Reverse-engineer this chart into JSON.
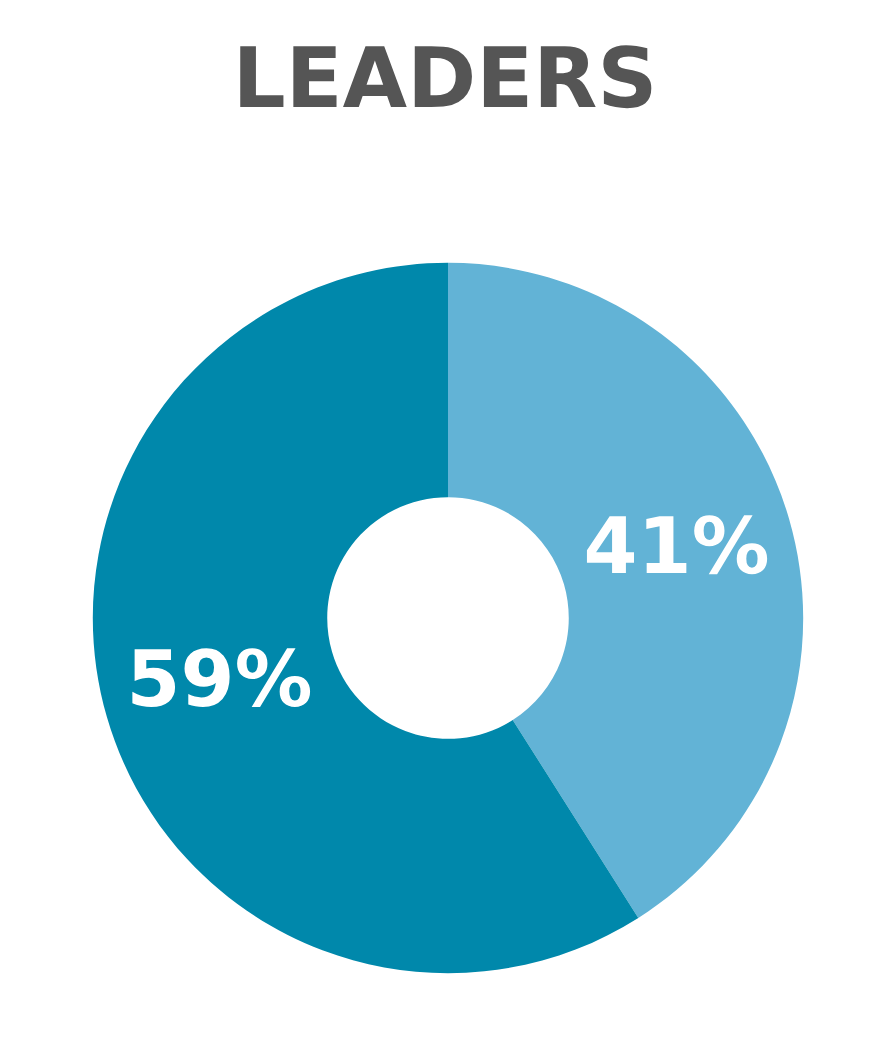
{
  "chart_data": {
    "type": "donut",
    "title": "LEADERS",
    "categories": [
      null,
      null
    ],
    "values": [
      41,
      59
    ],
    "colors": [
      "#62b3d6",
      "#0088ab"
    ],
    "value_labels": [
      "41%",
      "59%"
    ]
  }
}
